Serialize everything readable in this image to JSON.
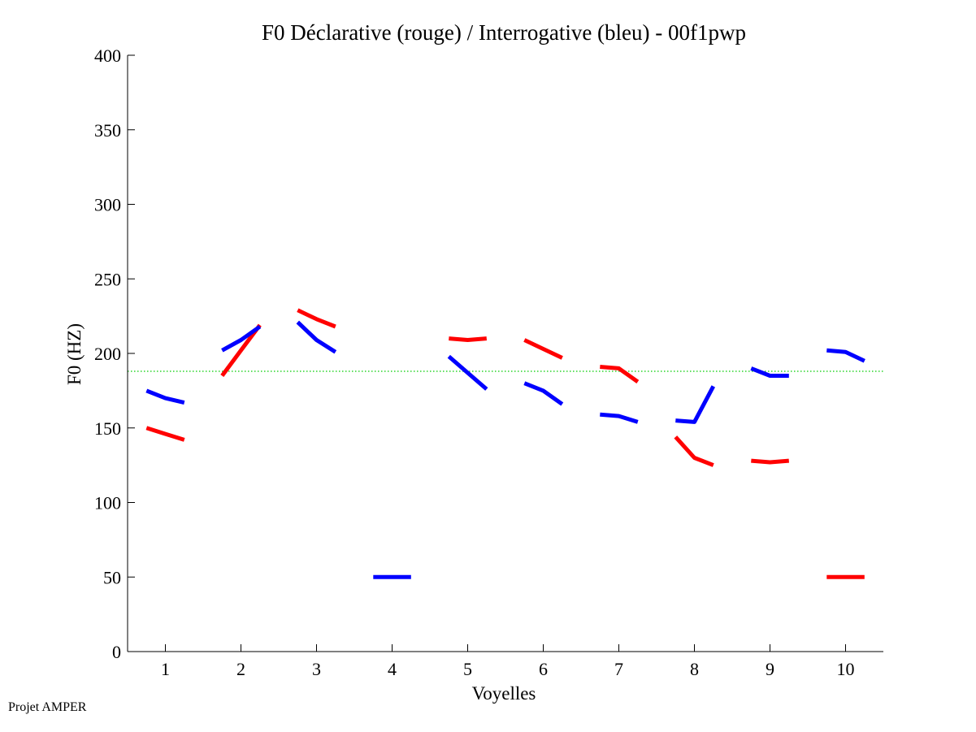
{
  "footer": "Projet AMPER",
  "chart_data": {
    "type": "line",
    "title": "F0 Déclarative (rouge) / Interrogative (bleu) - 00f1pwp",
    "xlabel": "Voyelles",
    "ylabel": "F0 (HZ)",
    "xlim": [
      0.5,
      10.5
    ],
    "ylim": [
      0,
      400
    ],
    "xticks": [
      1,
      2,
      3,
      4,
      5,
      6,
      7,
      8,
      9,
      10
    ],
    "yticks": [
      0,
      50,
      100,
      150,
      200,
      250,
      300,
      350,
      400
    ],
    "reference_line": {
      "y": 188,
      "color": "#00cc00",
      "style": "dotted"
    },
    "series": [
      {
        "color": "#ff0000",
        "segments": [
          {
            "x": [
              0.75,
              1.0,
              1.25
            ],
            "y": [
              150,
              146,
              142
            ]
          },
          {
            "x": [
              1.75,
              2.0,
              2.25
            ],
            "y": [
              185,
              202,
              219
            ]
          },
          {
            "x": [
              2.75,
              3.0,
              3.25
            ],
            "y": [
              229,
              223,
              218
            ]
          },
          {
            "x": [
              4.75,
              5.0,
              5.25
            ],
            "y": [
              210,
              209,
              210
            ]
          },
          {
            "x": [
              5.75,
              6.0,
              6.25
            ],
            "y": [
              209,
              203,
              197
            ]
          },
          {
            "x": [
              6.75,
              7.0,
              7.25
            ],
            "y": [
              191,
              190,
              181
            ]
          },
          {
            "x": [
              7.75,
              8.0,
              8.25
            ],
            "y": [
              144,
              130,
              125
            ]
          },
          {
            "x": [
              8.75,
              9.0,
              9.25
            ],
            "y": [
              128,
              127,
              128
            ]
          },
          {
            "x": [
              9.75,
              10.0,
              10.25
            ],
            "y": [
              50,
              50,
              50
            ]
          }
        ]
      },
      {
        "color": "#0000ff",
        "segments": [
          {
            "x": [
              0.75,
              1.0,
              1.25
            ],
            "y": [
              175,
              170,
              167
            ]
          },
          {
            "x": [
              1.75,
              2.0,
              2.25
            ],
            "y": [
              202,
              209,
              218
            ]
          },
          {
            "x": [
              2.75,
              3.0,
              3.25
            ],
            "y": [
              221,
              209,
              201
            ]
          },
          {
            "x": [
              3.75,
              4.0,
              4.25
            ],
            "y": [
              50,
              50,
              50
            ]
          },
          {
            "x": [
              4.75,
              5.0,
              5.25
            ],
            "y": [
              198,
              187,
              176
            ]
          },
          {
            "x": [
              5.75,
              6.0,
              6.25
            ],
            "y": [
              180,
              175,
              166
            ]
          },
          {
            "x": [
              6.75,
              7.0,
              7.25
            ],
            "y": [
              159,
              158,
              154
            ]
          },
          {
            "x": [
              7.75,
              8.0,
              8.25
            ],
            "y": [
              155,
              154,
              178
            ]
          },
          {
            "x": [
              8.75,
              9.0,
              9.25
            ],
            "y": [
              190,
              185,
              185
            ]
          },
          {
            "x": [
              9.75,
              10.0,
              10.25
            ],
            "y": [
              202,
              201,
              195
            ]
          }
        ]
      }
    ]
  }
}
